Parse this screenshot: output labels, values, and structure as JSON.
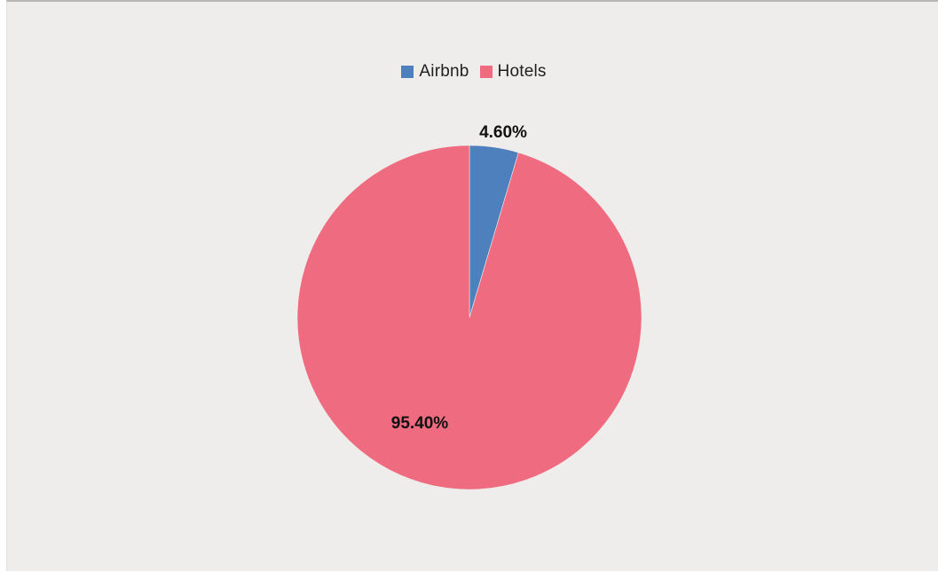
{
  "chart_data": {
    "type": "pie",
    "categories": [
      "Airbnb",
      "Hotels"
    ],
    "values": [
      4.6,
      95.4
    ],
    "data_labels": [
      "4.60%",
      "95.40%"
    ],
    "colors": [
      "#4e80bd",
      "#ef6b80"
    ],
    "legend_position": "top"
  }
}
